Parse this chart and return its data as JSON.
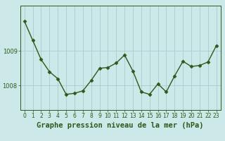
{
  "x": [
    0,
    1,
    2,
    3,
    4,
    5,
    6,
    7,
    8,
    9,
    10,
    11,
    12,
    13,
    14,
    15,
    16,
    17,
    18,
    19,
    20,
    21,
    22,
    23
  ],
  "y": [
    1009.85,
    1009.3,
    1008.75,
    1008.4,
    1008.2,
    1007.75,
    1007.78,
    1007.85,
    1008.15,
    1008.5,
    1008.52,
    1008.65,
    1008.88,
    1008.42,
    1007.82,
    1007.75,
    1008.05,
    1007.82,
    1008.28,
    1008.7,
    1008.55,
    1008.58,
    1008.68,
    1009.15
  ],
  "line_color": "#2d5a1b",
  "marker": "D",
  "markersize": 2.5,
  "linewidth": 1.0,
  "bg_color": "#cce8e8",
  "plot_bg_color": "#cce8e8",
  "grid_color": "#aacccc",
  "title": "Graphe pression niveau de la mer (hPa)",
  "title_fontsize": 7.5,
  "tick_fontsize": 6.0,
  "yticks": [
    1008,
    1009
  ],
  "ylim": [
    1007.3,
    1010.3
  ],
  "xlim": [
    -0.5,
    23.5
  ],
  "xtick_labels": [
    "0",
    "1",
    "2",
    "3",
    "4",
    "5",
    "6",
    "7",
    "8",
    "9",
    "10",
    "11",
    "12",
    "13",
    "14",
    "15",
    "16",
    "17",
    "18",
    "19",
    "20",
    "21",
    "22",
    "23"
  ]
}
